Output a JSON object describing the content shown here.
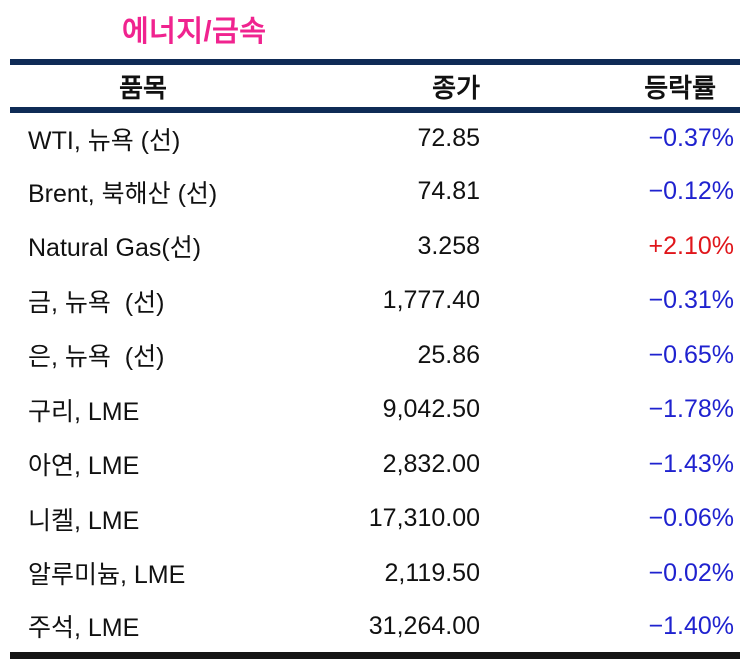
{
  "title": "에너지/금속",
  "colors": {
    "title_accent": "#F0238F",
    "rule_navy": "#0F2B56",
    "rule_black": "#151515",
    "up": "#E0161B",
    "down": "#1F22CF",
    "text": "#111111"
  },
  "table": {
    "headers": {
      "item": "품목",
      "close": "종가",
      "change": "등락률"
    },
    "rows": [
      {
        "item": "WTI, 뉴욕 (선)",
        "close": "72.85",
        "change": "−0.37%",
        "direction": "down"
      },
      {
        "item": "Brent, 북해산 (선)",
        "close": "74.81",
        "change": "−0.12%",
        "direction": "down"
      },
      {
        "item": "Natural Gas(선)",
        "close": "3.258",
        "change": "+2.10%",
        "direction": "up"
      },
      {
        "item": "금, 뉴욕  (선)",
        "close": "1,777.40",
        "change": "−0.31%",
        "direction": "down"
      },
      {
        "item": "은, 뉴욕  (선)",
        "close": "25.86",
        "change": "−0.65%",
        "direction": "down"
      },
      {
        "item": "구리, LME",
        "close": "9,042.50",
        "change": "−1.78%",
        "direction": "down"
      },
      {
        "item": "아연, LME",
        "close": "2,832.00",
        "change": "−1.43%",
        "direction": "down"
      },
      {
        "item": "니켈, LME",
        "close": "17,310.00",
        "change": "−0.06%",
        "direction": "down"
      },
      {
        "item": "알루미늄, LME",
        "close": "2,119.50",
        "change": "−0.02%",
        "direction": "down"
      },
      {
        "item": "주석, LME",
        "close": "31,264.00",
        "change": "−1.40%",
        "direction": "down"
      }
    ]
  },
  "chart_data": {
    "type": "table",
    "title": "에너지/금속",
    "columns": [
      "품목",
      "종가",
      "등락률"
    ],
    "rows": [
      [
        "WTI, 뉴욕 (선)",
        72.85,
        -0.37
      ],
      [
        "Brent, 북해산 (선)",
        74.81,
        -0.12
      ],
      [
        "Natural Gas(선)",
        3.258,
        2.1
      ],
      [
        "금, 뉴욕 (선)",
        1777.4,
        -0.31
      ],
      [
        "은, 뉴욕 (선)",
        25.86,
        -0.65
      ],
      [
        "구리, LME",
        9042.5,
        -1.78
      ],
      [
        "아연, LME",
        2832.0,
        -1.43
      ],
      [
        "니켈, LME",
        17310.0,
        -0.06
      ],
      [
        "알루미늄, LME",
        2119.5,
        -0.02
      ],
      [
        "주석, LME",
        31264.0,
        -1.4
      ]
    ],
    "notes": "등락률 units: percent; negative values rendered blue, positive red"
  }
}
